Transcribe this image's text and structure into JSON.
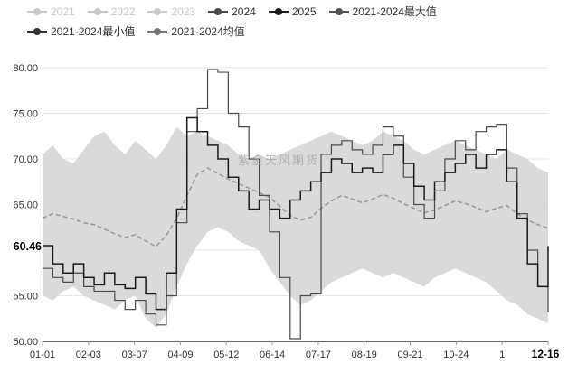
{
  "legend": {
    "items": [
      {
        "key": "2021",
        "label": "2021",
        "color": "#c9c9c9",
        "disabled": true
      },
      {
        "key": "2022",
        "label": "2022",
        "color": "#c9c9c9",
        "disabled": true
      },
      {
        "key": "2023",
        "label": "2023",
        "color": "#c9c9c9",
        "disabled": true
      },
      {
        "key": "2024",
        "label": "2024",
        "color": "#4a4a4a",
        "disabled": false
      },
      {
        "key": "2025",
        "label": "2025",
        "color": "#1a1a1a",
        "disabled": false
      },
      {
        "key": "max",
        "label": "2021-2024最大值",
        "color": "#555555",
        "disabled": false
      },
      {
        "key": "min",
        "label": "2021-2024最小值",
        "color": "#333333",
        "disabled": false
      },
      {
        "key": "mean",
        "label": "2021-2024均值",
        "color": "#777777",
        "disabled": false
      }
    ]
  },
  "chart_data": {
    "type": "line",
    "title": "",
    "watermark": "紫金天风期货",
    "current_value": "60.46",
    "ylim": [
      50,
      80
    ],
    "y_ticks": [
      "80.00",
      "75.00",
      "70.00",
      "65.00",
      "60.00",
      "55.00",
      "50.00"
    ],
    "x_tick_labels": [
      "01-01",
      "02-03",
      "03-07",
      "04-09",
      "05-12",
      "06-14",
      "07-17",
      "08-19",
      "09-21",
      "10-24",
      "1",
      "12-16"
    ],
    "band_color": "#d6d6d6",
    "grid": true,
    "legend_position": "top-left",
    "series": [
      {
        "key": "max",
        "name": "2021-2024最大值",
        "role": "band-upper",
        "color": "#d6d6d6",
        "values": [
          70.5,
          71.5,
          70,
          69.5,
          71,
          72.5,
          73,
          71.5,
          70.5,
          72,
          71,
          70,
          71.5,
          73.5,
          72.5,
          73,
          72.5,
          72,
          71.5,
          70.5,
          70,
          70.5,
          70,
          70.5,
          71,
          71.5,
          72,
          72.5,
          73,
          72.5,
          72,
          71.5,
          72,
          73,
          72.5,
          72,
          71,
          70.5,
          71,
          71.5,
          72,
          71.5,
          71,
          70.5,
          70,
          71,
          70.5,
          70,
          69,
          68.5
        ]
      },
      {
        "key": "min",
        "name": "2021-2024最小值",
        "role": "band-lower",
        "color": "#d6d6d6",
        "values": [
          55,
          54.5,
          55.5,
          56,
          55,
          54.5,
          54,
          53.5,
          54.5,
          55,
          52.5,
          51.5,
          53,
          56,
          58.5,
          60.5,
          62,
          62.5,
          62,
          61,
          60.5,
          60,
          58,
          56.5,
          55,
          54,
          54.5,
          55.5,
          56.5,
          57,
          57.5,
          58,
          57.5,
          57,
          57.5,
          57,
          56.5,
          56,
          57,
          57.5,
          58,
          57.5,
          57,
          56.5,
          55.5,
          54.5,
          54,
          53,
          52.5,
          52
        ]
      },
      {
        "key": "mean",
        "name": "2021-2024均值",
        "role": "mean",
        "color": "#9a9a9a",
        "width": 1.6,
        "values": [
          63.5,
          64,
          63.7,
          63.4,
          63,
          62.8,
          62.3,
          61.8,
          61.4,
          61.7,
          61,
          60.4,
          61.6,
          63.5,
          66,
          68.3,
          69,
          68.4,
          67.8,
          67.3,
          66.8,
          66.3,
          65.8,
          64.8,
          63.8,
          63.3,
          63.6,
          64.6,
          65.4,
          66,
          65.6,
          65.2,
          65.6,
          66.1,
          65.7,
          65.1,
          64.6,
          64.1,
          64.4,
          64.9,
          65.4,
          65.1,
          64.7,
          64.2,
          64.6,
          64.9,
          64,
          63.3,
          62.8,
          62.4
        ]
      },
      {
        "key": "2024",
        "name": "2024",
        "role": "line",
        "color": "#4a4a4a",
        "width": 1.2,
        "values": [
          58,
          57,
          56.5,
          57.5,
          56,
          55.5,
          55.5,
          54.5,
          53.5,
          54.5,
          53,
          51.8,
          55,
          63,
          73,
          75.5,
          79.8,
          79.5,
          75,
          73.5,
          70,
          66,
          62,
          57,
          50.3,
          55,
          55.2,
          70.5,
          71.5,
          72,
          71,
          70.5,
          71.5,
          73.5,
          72.5,
          68,
          65,
          63.5,
          66.5,
          70,
          72,
          71,
          73,
          73.5,
          73.8,
          69,
          64,
          60,
          56,
          53.2
        ]
      },
      {
        "key": "2025",
        "name": "2025",
        "role": "line",
        "color": "#1a1a1a",
        "width": 1.5,
        "values": [
          60.5,
          58.5,
          57.5,
          58.5,
          57,
          56.2,
          57.5,
          56.2,
          55.8,
          57,
          55.2,
          53.5,
          57.5,
          64.5,
          74.5,
          73,
          71.5,
          70,
          68,
          66.5,
          64.5,
          65.5,
          64.5,
          63.5,
          65.5,
          66.5,
          67.5,
          68.5,
          70,
          69.5,
          68.5,
          69,
          68.5,
          70.5,
          71.5,
          69.5,
          67,
          65.5,
          67.5,
          68.5,
          69.5,
          70.5,
          69,
          70.5,
          71,
          67.5,
          63.5,
          58.5,
          56,
          60.46
        ]
      }
    ]
  }
}
